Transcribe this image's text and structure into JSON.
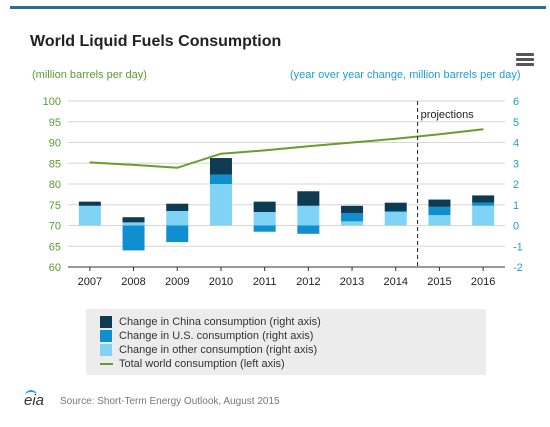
{
  "title": "World Liquid Fuels Consumption",
  "left_unit": "(million barrels per day)",
  "right_unit": "(year over year change, million barrels per day)",
  "menu_icon": "hamburger-menu-icon",
  "projection_label": "projections",
  "source": "Source: Short-Term Energy Outlook, August 2015",
  "logo_text": "eia",
  "colors": {
    "china": "#0e3a52",
    "us": "#0f8fcf",
    "other": "#7fd3f5",
    "total": "#6a9c2e",
    "grid": "#d6d6d6",
    "axis": "#333333",
    "left_axis_text": "#5a9c2e",
    "right_axis_text": "#1d9fd3"
  },
  "legend": [
    {
      "label": "Change in China consumption (right axis)",
      "kind": "box",
      "color_key": "china"
    },
    {
      "label": "Change in U.S. consumption (right axis)",
      "kind": "box",
      "color_key": "us"
    },
    {
      "label": "Change in other consumption (right axis)",
      "kind": "box",
      "color_key": "other"
    },
    {
      "label": "Total world consumption (left axis)",
      "kind": "line",
      "color_key": "total"
    }
  ],
  "chart_data": {
    "type": "bar",
    "stacking": "stacked",
    "categories": [
      "2007",
      "2008",
      "2009",
      "2010",
      "2011",
      "2012",
      "2013",
      "2014",
      "2015",
      "2016"
    ],
    "projection_start_index": 7.5,
    "left_axis": {
      "min": 60,
      "max": 100,
      "ticks": [
        60,
        65,
        70,
        75,
        80,
        85,
        90,
        95,
        100
      ]
    },
    "right_axis": {
      "min": -2,
      "max": 6,
      "ticks": [
        -2,
        -1,
        0,
        1,
        2,
        3,
        4,
        5,
        6
      ]
    },
    "grid": true,
    "series": [
      {
        "name": "Change in China consumption (right axis)",
        "axis": "right",
        "values": [
          0.2,
          0.25,
          0.35,
          0.8,
          0.5,
          0.7,
          0.35,
          0.4,
          0.35,
          0.35
        ]
      },
      {
        "name": "Change in U.S. consumption (right axis)",
        "axis": "right",
        "values": [
          0.0,
          -1.2,
          -0.8,
          0.45,
          -0.3,
          -0.4,
          0.4,
          0.05,
          0.4,
          0.15
        ]
      },
      {
        "name": "Change in other consumption (right axis)",
        "axis": "right",
        "values": [
          0.95,
          0.15,
          0.7,
          2.0,
          0.65,
          0.95,
          0.2,
          0.65,
          0.5,
          0.95
        ]
      },
      {
        "name": "Total world consumption (left axis)",
        "axis": "left",
        "type": "line",
        "values": [
          85.2,
          84.6,
          83.9,
          87.3,
          88.1,
          89.1,
          90.0,
          90.9,
          92.0,
          93.2
        ]
      }
    ],
    "legend_position": "bottom"
  }
}
